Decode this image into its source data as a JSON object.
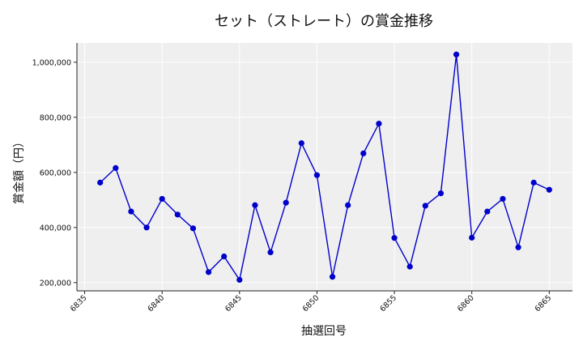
{
  "chart_data": {
    "type": "line",
    "title": "セット（ストレート）の賞金推移",
    "xlabel": "抽選回号",
    "ylabel": "賞金額（円）",
    "xlim": [
      6834.5,
      6866.5
    ],
    "ylim": [
      170000,
      1070000
    ],
    "x_ticks": [
      6835,
      6840,
      6845,
      6850,
      6855,
      6860,
      6865
    ],
    "x_tick_labels": [
      "6835",
      "6840",
      "6845",
      "6850",
      "6855",
      "6860",
      "6865"
    ],
    "y_ticks": [
      200000,
      400000,
      600000,
      800000,
      1000000
    ],
    "y_tick_labels": [
      "200,000",
      "400,000",
      "600,000",
      "800,000",
      "1,000,000"
    ],
    "grid": true,
    "background": "#efefef",
    "line_color": "#0000cc",
    "series": [
      {
        "x": [
          6836,
          6837,
          6838,
          6839,
          6840,
          6841,
          6842,
          6843,
          6844,
          6845,
          6846,
          6847,
          6848,
          6849,
          6850,
          6851,
          6852,
          6853,
          6854,
          6855,
          6856,
          6857,
          6858,
          6859,
          6860,
          6861,
          6862,
          6863,
          6864,
          6865
        ],
        "values": [
          563000,
          616000,
          458000,
          400000,
          504000,
          447000,
          397000,
          238000,
          295000,
          210000,
          481000,
          310000,
          490000,
          706000,
          590000,
          221000,
          481000,
          669000,
          777000,
          362000,
          258000,
          479000,
          524000,
          1028000,
          363000,
          458000,
          504000,
          328000,
          563000,
          537000
        ]
      }
    ]
  }
}
